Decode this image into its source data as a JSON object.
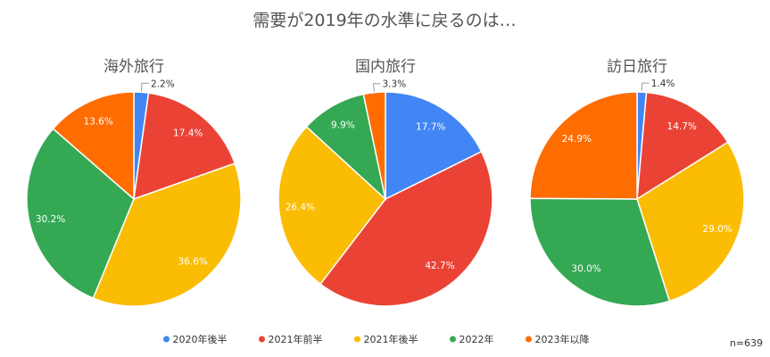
{
  "chart_data": {
    "type": "pie",
    "title": "需要が2019年の水準に戻るのは…",
    "note": "n=639",
    "categories": [
      "2020年後半",
      "2021年前半",
      "2021年後半",
      "2022年",
      "2023年以降"
    ],
    "colors": [
      "#4285F4",
      "#EA4335",
      "#FBBC04",
      "#34A853",
      "#FF6D01"
    ],
    "legend_position": "bottom",
    "pies": [
      {
        "title": "海外旅行",
        "values": [
          2.2,
          17.4,
          36.6,
          30.2,
          13.6
        ],
        "labels": [
          "2.2%",
          "17.4%",
          "36.6%",
          "30.2%",
          "13.6%"
        ]
      },
      {
        "title": "国内旅行",
        "values": [
          17.7,
          42.7,
          26.4,
          9.9,
          3.3
        ],
        "labels": [
          "17.7%",
          "42.7%",
          "26.4%",
          "9.9%",
          "3.3%"
        ]
      },
      {
        "title": "訪日旅行",
        "values": [
          1.4,
          14.7,
          29.0,
          30.0,
          24.9
        ],
        "labels": [
          "1.4%",
          "14.7%",
          "29.0%",
          "30.0%",
          "24.9%"
        ]
      }
    ]
  }
}
